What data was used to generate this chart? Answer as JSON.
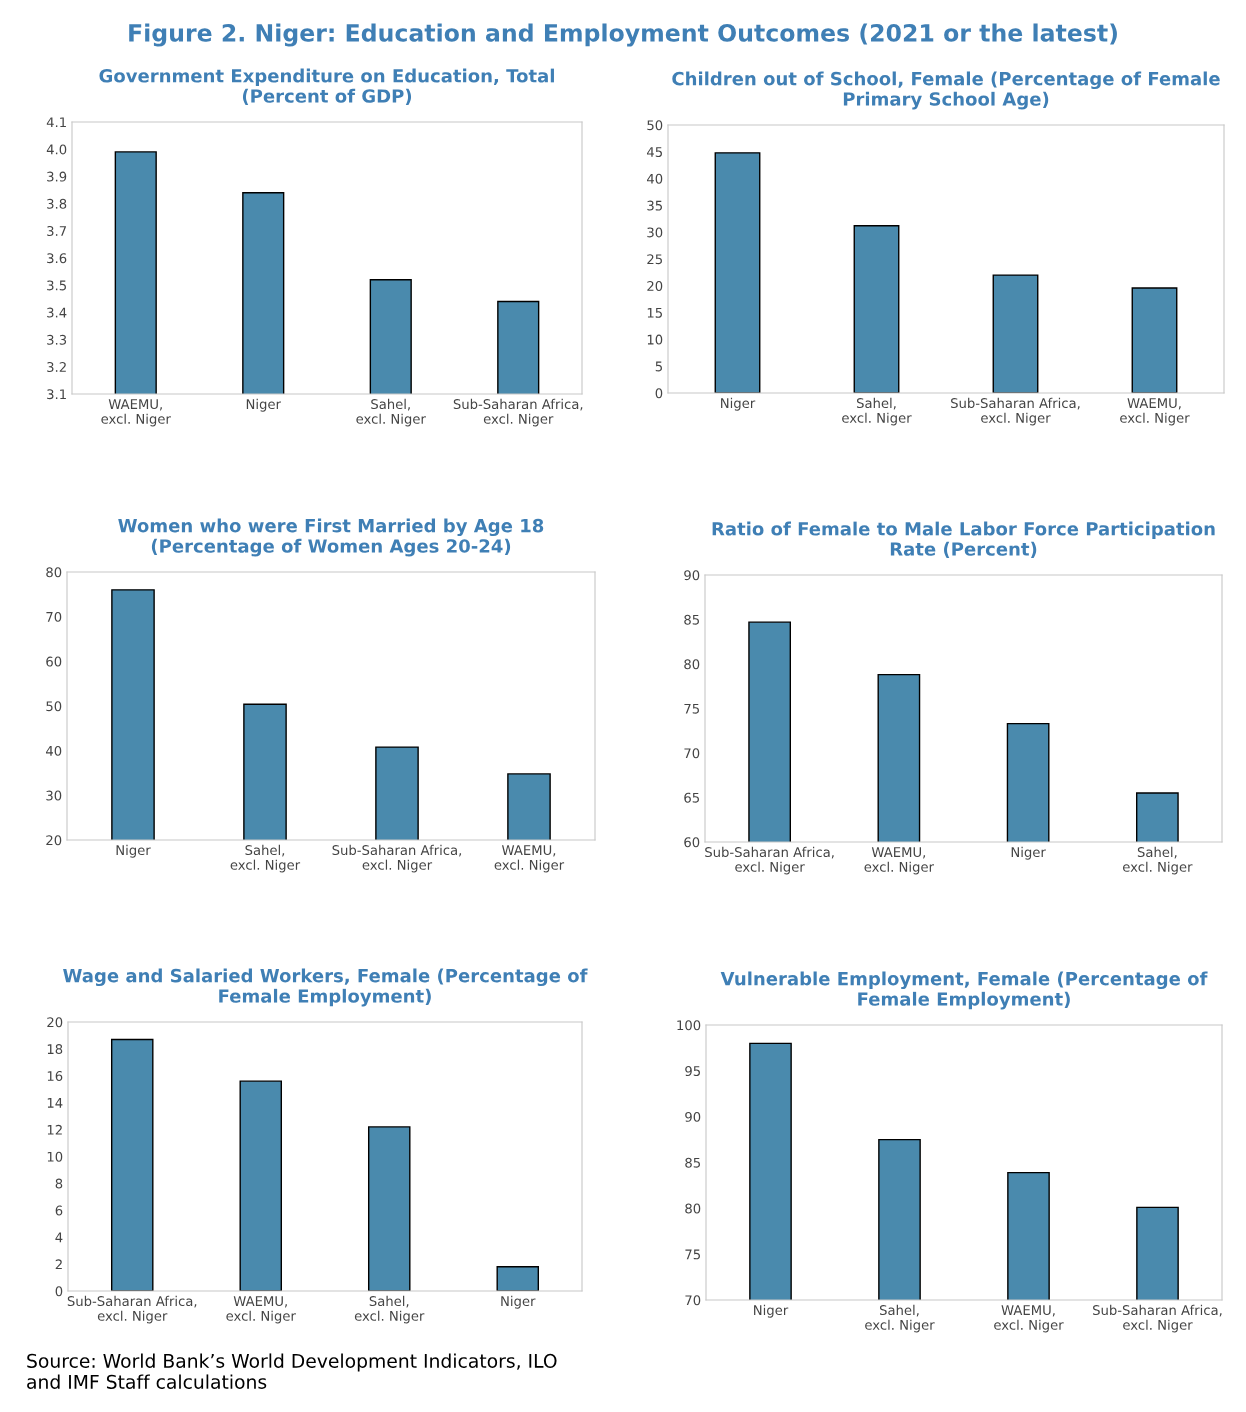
{
  "chart_data": [
    {
      "type": "bar",
      "title": "Government Expenditure on Education, Total\n(Percent of GDP)",
      "annotations": [
        "Figure 2. Niger: Education and Employment Outcomes (2021 or the latest)"
      ],
      "categories": [
        "WAEMU, excl. Niger",
        "Niger",
        "Sahel, excl. Niger",
        "Sub-Saharan Africa, excl. Niger"
      ],
      "values": [
        3.99,
        3.84,
        3.52,
        3.44
      ],
      "color": "#4a8aad",
      "ylim": [
        3.1,
        4.1
      ],
      "yticks": [
        3.1,
        3.2,
        3.3,
        3.4,
        3.5,
        3.6,
        3.7,
        3.8,
        3.9,
        {
          "value": 4.0,
          "label": "4.0"
        },
        4.1
      ],
      "grid": false
    },
    {
      "type": "bar",
      "title": "Children out of School, Female (Percentage of Female\nPrimary School Age)",
      "categories": [
        "Niger",
        "Sahel, excl. Niger",
        "Sub-Saharan Africa, excl. Niger",
        "WAEMU, excl. Niger"
      ],
      "values": [
        44.8,
        31.2,
        22.0,
        19.6
      ],
      "color": "#4a8aad",
      "ylim": [
        0,
        50
      ],
      "yticks": [
        0,
        5,
        10,
        15,
        20,
        25,
        30,
        35,
        40,
        45,
        50
      ],
      "grid": false
    },
    {
      "type": "bar",
      "title": "Women who were First Married by Age 18\n(Percentage of Women Ages 20-24)",
      "categories": [
        "Niger",
        "Sahel, excl. Niger",
        "Sub-Saharan Africa, excl. Niger",
        "WAEMU, excl. Niger"
      ],
      "values": [
        76.0,
        50.4,
        40.8,
        34.8
      ],
      "color": "#4a8aad",
      "ylim": [
        20,
        80
      ],
      "yticks": [
        20,
        30,
        40,
        50,
        60,
        70,
        80
      ],
      "grid": false
    },
    {
      "type": "bar",
      "title": "Ratio of Female to Male Labor Force Participation\nRate (Percent)",
      "categories": [
        "Sub-Saharan Africa, excl. Niger",
        "WAEMU, excl. Niger",
        "Niger",
        "Sahel, excl. Niger"
      ],
      "values": [
        84.7,
        78.8,
        73.3,
        65.5
      ],
      "color": "#4a8aad",
      "ylim": [
        60,
        90
      ],
      "yticks": [
        60,
        65,
        70,
        75,
        80,
        85,
        90
      ],
      "grid": false
    },
    {
      "type": "bar",
      "title": "Wage and Salaried Workers, Female (Percentage of\nFemale Employment)",
      "categories": [
        "Sub-Saharan Africa, excl. Niger",
        "WAEMU, excl. Niger",
        "Sahel, excl. Niger",
        "Niger"
      ],
      "values": [
        18.7,
        15.6,
        12.2,
        1.8
      ],
      "color": "#4a8aad",
      "ylim": [
        0,
        20
      ],
      "yticks": [
        0,
        2,
        4,
        6,
        8,
        10,
        12,
        14,
        16,
        18,
        20
      ],
      "grid": false
    },
    {
      "type": "bar",
      "title": "Vulnerable Employment, Female (Percentage of\nFemale Employment)",
      "annotations": [
        "Source: World Bank’s World Development Indicators, ILO\nand IMF Staff calculations"
      ],
      "categories": [
        "Niger",
        "Sahel, excl. Niger",
        "WAEMU, excl. Niger",
        "Sub-Saharan Africa, excl. Niger"
      ],
      "values": [
        98.0,
        87.5,
        83.9,
        80.1
      ],
      "color": "#4a8aad",
      "ylim": [
        70,
        100
      ],
      "yticks": [
        70,
        75,
        80,
        85,
        90,
        95,
        100
      ],
      "grid": false
    }
  ]
}
